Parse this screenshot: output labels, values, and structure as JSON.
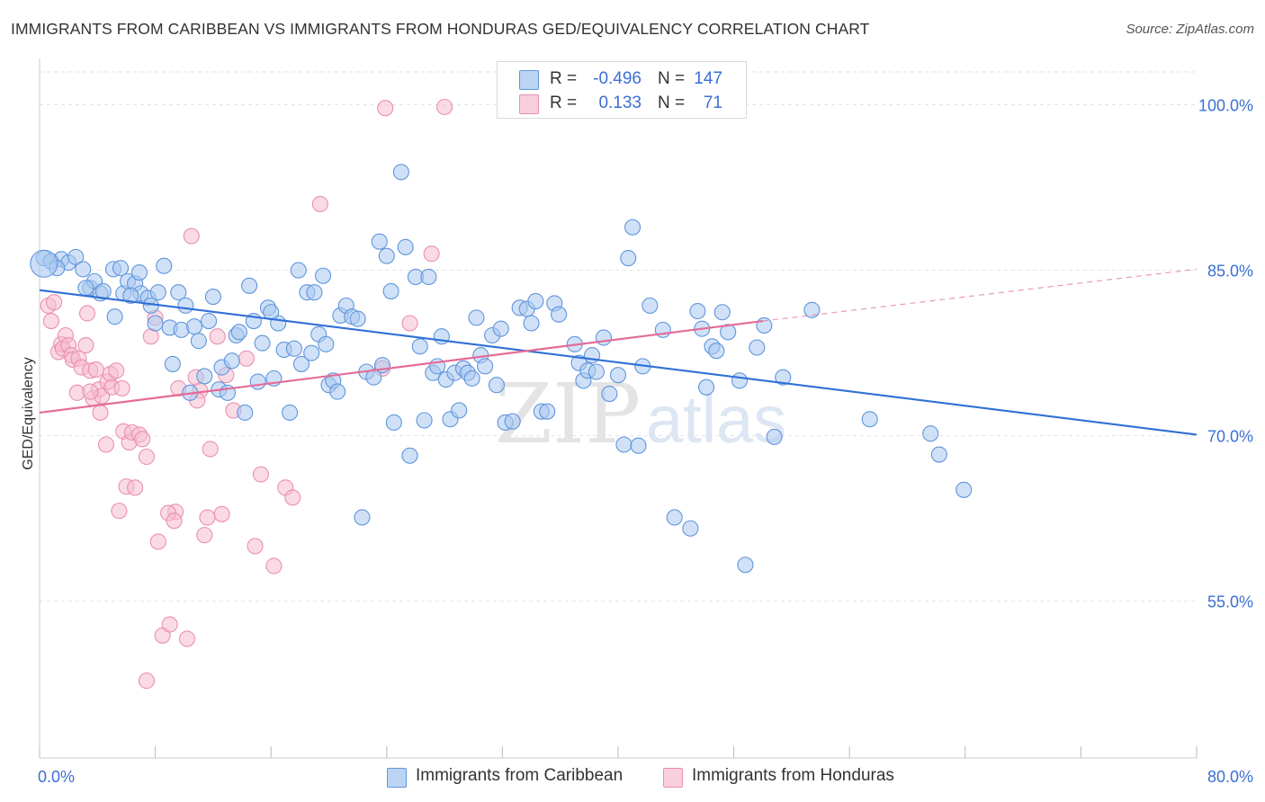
{
  "title": "IMMIGRANTS FROM CARIBBEAN VS IMMIGRANTS FROM HONDURAS GED/EQUIVALENCY CORRELATION CHART",
  "source": "Source: ZipAtlas.com",
  "watermark": {
    "zip": "ZIP",
    "atlas": "atlas"
  },
  "colors": {
    "caribbean_fill": "#a9c8f0",
    "caribbean_stroke": "#5f95dc",
    "caribbean_line": "#2f6fd6",
    "honduras_fill": "#f6bdd0",
    "honduras_stroke": "#ea8fb0",
    "honduras_line": "#e56b97",
    "tick_label": "#3b6fd4",
    "grid": "#e2e2e2"
  },
  "stats": [
    {
      "r_label": "R =",
      "r_value": "-0.496",
      "n_label": "N =",
      "n_value": "147"
    },
    {
      "r_label": "R =",
      "r_value": "0.133",
      "n_label": "N =",
      "n_value": "71"
    }
  ],
  "legend": {
    "caribbean": "Immigrants from Caribbean",
    "honduras": "Immigrants from Honduras"
  },
  "chart_data": {
    "type": "scatter",
    "xlabel": "",
    "ylabel": "GED/Equivalency",
    "xlim": [
      0,
      80
    ],
    "ylim": [
      40.8,
      104.2
    ],
    "x_tick_labels": [
      {
        "value": 0,
        "label": "0.0%"
      },
      {
        "value": 80,
        "label": "80.0%"
      }
    ],
    "y_tick_labels": [
      {
        "value": 100,
        "label": "100.0%"
      },
      {
        "value": 85,
        "label": "85.0%"
      },
      {
        "value": 70,
        "label": "70.0%"
      },
      {
        "value": 55,
        "label": "55.0%"
      }
    ],
    "y_grid": [
      100,
      85,
      70,
      55
    ],
    "x_minor_ticks": [
      0,
      8,
      16,
      24,
      32,
      40,
      48,
      56,
      64,
      72,
      80
    ],
    "grid": true,
    "legend_position": "bottom-center",
    "series": [
      {
        "name": "Immigrants from Caribbean",
        "trend": {
          "x": [
            0,
            80
          ],
          "y": [
            83.2,
            70.1
          ],
          "dashed_extension": false
        },
        "points": [
          [
            0.3,
            86.1
          ],
          [
            0.8,
            85.8
          ],
          [
            1.5,
            86.0
          ],
          [
            2.0,
            85.7
          ],
          [
            2.5,
            86.2
          ],
          [
            1.2,
            85.2
          ],
          [
            3.0,
            85.1
          ],
          [
            3.5,
            83.4
          ],
          [
            3.8,
            84.0
          ],
          [
            4.2,
            82.9
          ],
          [
            4.4,
            83.1
          ],
          [
            5.1,
            85.1
          ],
          [
            5.2,
            80.8
          ],
          [
            5.6,
            85.2
          ],
          [
            5.8,
            82.9
          ],
          [
            6.1,
            84.0
          ],
          [
            6.6,
            83.8
          ],
          [
            6.9,
            84.8
          ],
          [
            7.0,
            82.9
          ],
          [
            7.5,
            82.5
          ],
          [
            7.7,
            81.8
          ],
          [
            8.0,
            80.2
          ],
          [
            8.2,
            83.0
          ],
          [
            8.6,
            85.4
          ],
          [
            9.0,
            79.8
          ],
          [
            9.2,
            76.5
          ],
          [
            9.6,
            83.0
          ],
          [
            9.8,
            79.6
          ],
          [
            10.1,
            81.8
          ],
          [
            10.4,
            73.9
          ],
          [
            10.7,
            79.9
          ],
          [
            11.0,
            78.6
          ],
          [
            11.4,
            75.4
          ],
          [
            11.7,
            80.4
          ],
          [
            12.0,
            82.6
          ],
          [
            12.4,
            74.2
          ],
          [
            12.6,
            76.2
          ],
          [
            13.0,
            73.9
          ],
          [
            13.3,
            76.8
          ],
          [
            13.6,
            79.1
          ],
          [
            13.8,
            79.4
          ],
          [
            14.2,
            72.1
          ],
          [
            14.5,
            83.6
          ],
          [
            14.8,
            80.4
          ],
          [
            15.1,
            74.9
          ],
          [
            15.4,
            78.4
          ],
          [
            15.8,
            81.6
          ],
          [
            16.2,
            75.2
          ],
          [
            16.5,
            80.2
          ],
          [
            16.9,
            77.8
          ],
          [
            17.3,
            72.1
          ],
          [
            17.6,
            77.9
          ],
          [
            17.9,
            85.0
          ],
          [
            18.1,
            76.5
          ],
          [
            18.5,
            83.0
          ],
          [
            18.8,
            77.5
          ],
          [
            19.0,
            83.0
          ],
          [
            19.3,
            79.2
          ],
          [
            19.6,
            84.5
          ],
          [
            20.0,
            74.6
          ],
          [
            20.3,
            75.0
          ],
          [
            20.6,
            74.0
          ],
          [
            20.8,
            80.9
          ],
          [
            21.2,
            81.8
          ],
          [
            21.6,
            80.8
          ],
          [
            22.0,
            80.6
          ],
          [
            22.3,
            62.6
          ],
          [
            22.6,
            75.8
          ],
          [
            23.1,
            75.3
          ],
          [
            23.5,
            87.6
          ],
          [
            23.7,
            76.4
          ],
          [
            24.0,
            86.3
          ],
          [
            24.3,
            83.1
          ],
          [
            24.5,
            71.2
          ],
          [
            25.0,
            93.9
          ],
          [
            25.3,
            87.1
          ],
          [
            25.6,
            68.2
          ],
          [
            26.0,
            84.4
          ],
          [
            26.3,
            78.1
          ],
          [
            26.6,
            71.4
          ],
          [
            26.9,
            84.4
          ],
          [
            27.2,
            75.7
          ],
          [
            27.5,
            76.3
          ],
          [
            27.8,
            79.0
          ],
          [
            28.1,
            75.1
          ],
          [
            28.4,
            71.5
          ],
          [
            28.7,
            75.7
          ],
          [
            29.0,
            72.3
          ],
          [
            29.3,
            76.1
          ],
          [
            29.6,
            75.7
          ],
          [
            30.2,
            80.7
          ],
          [
            30.5,
            77.3
          ],
          [
            30.8,
            76.3
          ],
          [
            31.3,
            79.1
          ],
          [
            31.6,
            74.6
          ],
          [
            31.9,
            79.7
          ],
          [
            32.2,
            71.2
          ],
          [
            32.7,
            71.3
          ],
          [
            33.2,
            81.6
          ],
          [
            33.7,
            81.5
          ],
          [
            34.0,
            80.2
          ],
          [
            34.3,
            82.2
          ],
          [
            34.7,
            72.2
          ],
          [
            35.1,
            72.2
          ],
          [
            35.6,
            82.0
          ],
          [
            35.9,
            81.0
          ],
          [
            37.0,
            78.3
          ],
          [
            37.3,
            76.6
          ],
          [
            37.6,
            75.0
          ],
          [
            37.9,
            75.9
          ],
          [
            38.2,
            77.3
          ],
          [
            38.5,
            75.8
          ],
          [
            39.0,
            78.9
          ],
          [
            39.4,
            73.8
          ],
          [
            40.0,
            75.5
          ],
          [
            40.4,
            69.2
          ],
          [
            40.7,
            86.1
          ],
          [
            41.0,
            88.9
          ],
          [
            41.4,
            69.1
          ],
          [
            41.7,
            76.3
          ],
          [
            42.2,
            81.8
          ],
          [
            43.1,
            79.6
          ],
          [
            43.9,
            62.6
          ],
          [
            45.0,
            61.6
          ],
          [
            45.5,
            81.3
          ],
          [
            45.8,
            79.7
          ],
          [
            46.1,
            74.4
          ],
          [
            46.5,
            78.1
          ],
          [
            46.8,
            77.7
          ],
          [
            47.2,
            81.2
          ],
          [
            47.6,
            79.4
          ],
          [
            48.4,
            75.0
          ],
          [
            48.8,
            58.3
          ],
          [
            49.6,
            78.0
          ],
          [
            50.1,
            80.0
          ],
          [
            50.8,
            69.9
          ],
          [
            51.4,
            75.3
          ],
          [
            53.4,
            81.4
          ],
          [
            57.4,
            71.5
          ],
          [
            61.6,
            70.2
          ],
          [
            62.2,
            68.3
          ],
          [
            63.9,
            65.1
          ],
          [
            3.2,
            83.4
          ],
          [
            6.3,
            82.7
          ],
          [
            16.0,
            81.2
          ],
          [
            19.8,
            78.3
          ],
          [
            29.9,
            75.2
          ]
        ]
      },
      {
        "name": "Immigrants from Honduras",
        "trend": {
          "x": [
            0,
            50
          ],
          "y": [
            72.1,
            80.4
          ],
          "dashed_extension_to": [
            80,
            85.1
          ]
        },
        "points": [
          [
            0.6,
            81.8
          ],
          [
            0.8,
            80.4
          ],
          [
            1.0,
            82.1
          ],
          [
            1.3,
            77.6
          ],
          [
            1.5,
            78.3
          ],
          [
            1.6,
            77.9
          ],
          [
            1.8,
            79.1
          ],
          [
            2.0,
            78.2
          ],
          [
            2.2,
            77.3
          ],
          [
            2.3,
            76.9
          ],
          [
            2.6,
            73.9
          ],
          [
            2.7,
            77.0
          ],
          [
            2.9,
            76.2
          ],
          [
            3.2,
            78.2
          ],
          [
            3.3,
            81.1
          ],
          [
            3.5,
            75.9
          ],
          [
            3.7,
            73.4
          ],
          [
            3.9,
            76.0
          ],
          [
            4.1,
            74.2
          ],
          [
            4.3,
            73.6
          ],
          [
            4.6,
            69.2
          ],
          [
            4.7,
            74.9
          ],
          [
            4.9,
            75.6
          ],
          [
            5.0,
            74.4
          ],
          [
            5.3,
            75.9
          ],
          [
            5.5,
            63.2
          ],
          [
            5.7,
            74.3
          ],
          [
            5.8,
            70.4
          ],
          [
            6.0,
            65.4
          ],
          [
            6.2,
            69.4
          ],
          [
            6.4,
            70.3
          ],
          [
            6.6,
            65.3
          ],
          [
            6.9,
            70.1
          ],
          [
            7.1,
            69.7
          ],
          [
            7.4,
            68.1
          ],
          [
            7.7,
            79.0
          ],
          [
            8.0,
            80.7
          ],
          [
            8.2,
            60.4
          ],
          [
            8.5,
            51.9
          ],
          [
            9.0,
            52.9
          ],
          [
            9.4,
            63.1
          ],
          [
            9.6,
            74.3
          ],
          [
            10.2,
            51.6
          ],
          [
            10.5,
            88.1
          ],
          [
            10.8,
            75.3
          ],
          [
            11.1,
            74.1
          ],
          [
            11.4,
            61.0
          ],
          [
            11.8,
            68.8
          ],
          [
            12.3,
            79.0
          ],
          [
            12.6,
            62.9
          ],
          [
            12.9,
            75.5
          ],
          [
            13.4,
            72.3
          ],
          [
            14.3,
            77.0
          ],
          [
            14.9,
            60.0
          ],
          [
            15.3,
            66.5
          ],
          [
            16.2,
            58.2
          ],
          [
            17.0,
            65.3
          ],
          [
            17.5,
            64.4
          ],
          [
            19.4,
            91.0
          ],
          [
            23.7,
            76.1
          ],
          [
            23.9,
            99.7
          ],
          [
            25.6,
            80.2
          ],
          [
            27.1,
            86.5
          ],
          [
            28.0,
            99.8
          ],
          [
            8.9,
            63.0
          ],
          [
            7.4,
            47.8
          ],
          [
            10.9,
            73.2
          ],
          [
            11.6,
            62.6
          ],
          [
            3.5,
            74.0
          ],
          [
            4.2,
            72.1
          ],
          [
            9.3,
            62.3
          ]
        ]
      }
    ]
  }
}
